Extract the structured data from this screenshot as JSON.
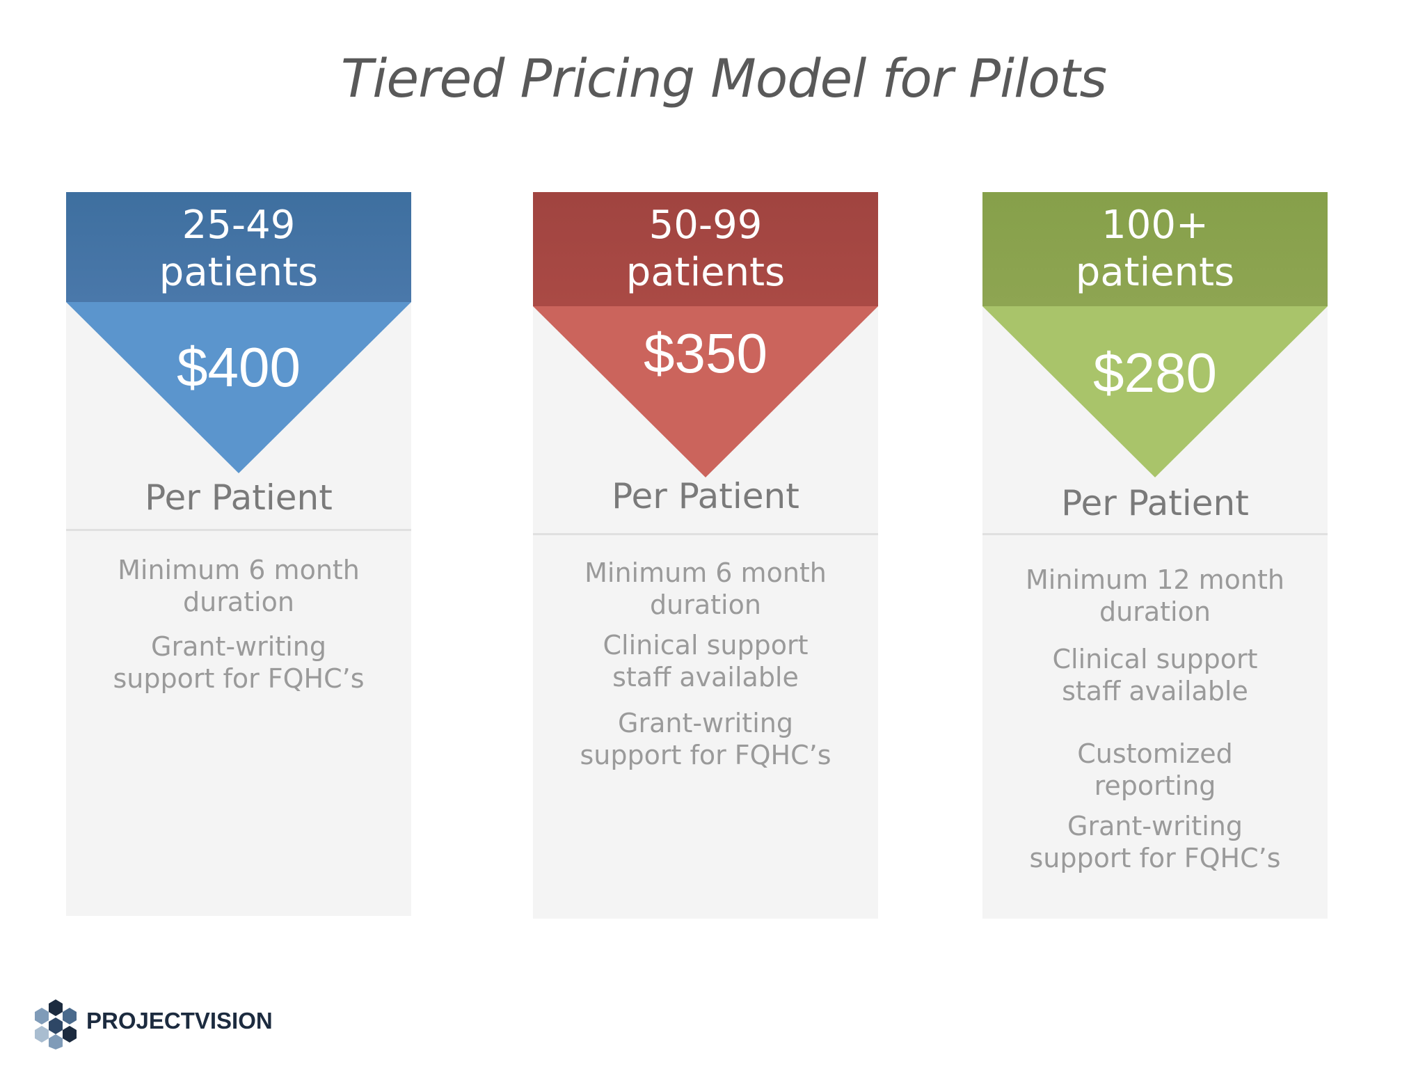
{
  "title": "Tiered Pricing Model for Pilots",
  "tiers": [
    {
      "range": "25-49",
      "unit": "patients",
      "price": "$400",
      "per": "Per Patient",
      "color_header": "#4574a4",
      "color_triangle": "#5b95cd",
      "features": [
        "Minimum 6 month duration",
        "Grant-writing support for FQHC’s"
      ]
    },
    {
      "range": "50-99",
      "unit": "patients",
      "price": "$350",
      "per": "Per Patient",
      "color_header": "#a64842",
      "color_triangle": "#cb645c",
      "features": [
        "Minimum 6 month duration",
        "Clinical support staff available",
        "Grant-writing support for FQHC’s"
      ]
    },
    {
      "range": "100+",
      "unit": "patients",
      "price": "$280",
      "per": "Per Patient",
      "color_header": "#8aa24e",
      "color_triangle": "#a9c46a",
      "features": [
        "Minimum 12 month duration",
        "Clinical support staff available",
        "Customized reporting",
        "Grant-writing support for FQHC’s"
      ]
    }
  ],
  "brand": {
    "name": "PROJECTVISION",
    "icon": "hexagon-cluster-logo-icon"
  }
}
